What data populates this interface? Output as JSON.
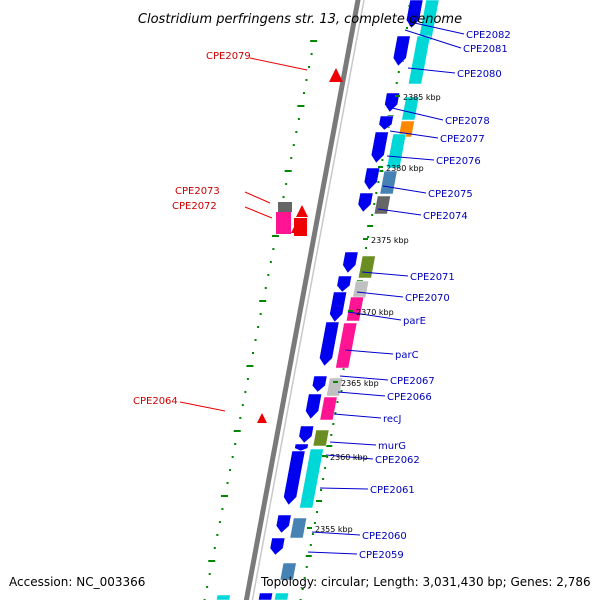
{
  "title": "Clostridium perfringens str. 13, complete genome",
  "accession_text": "Accession: NC_003366",
  "topology_text": "Topology: circular; Length: 3,031,430 bp; Genes: 2,786",
  "colors": {
    "forward_gene": "#0000ee",
    "reverse_gene": "#00d8d8",
    "rna_gene": "#ee0000",
    "label_forward": "#0000bb",
    "label_reverse": "#cc0000",
    "backbone": "#7a7a7a",
    "ticks": "#008800"
  },
  "position_labels": [
    "2385 kbp",
    "2380 kbp",
    "2375 kbp",
    "2370 kbp",
    "2365 kbp",
    "2360 kbp",
    "2355 kbp"
  ],
  "right_labels": [
    "CPE2082",
    "CPE2081",
    "CPE2080",
    "CPE2078",
    "CPE2077",
    "CPE2076",
    "CPE2075",
    "CPE2074",
    "CPE2071",
    "CPE2070",
    "parE",
    "parC",
    "CPE2067",
    "CPE2066",
    "recJ",
    "murG",
    "CPE2062",
    "CPE2061",
    "CPE2060",
    "CPE2059"
  ],
  "left_labels": [
    "CPE2079",
    "CPE2073",
    "CPE2072",
    "CPE2064"
  ]
}
